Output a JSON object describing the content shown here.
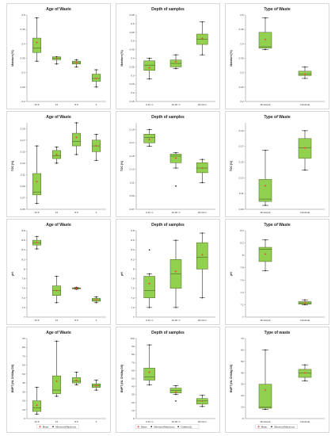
{
  "colors": {
    "box_fill": "#92d050",
    "box_stroke": "#4f6228",
    "mean": "#ff3b3b",
    "whisker": "#000000",
    "frame": "#bfbfbf"
  },
  "chart_data": [
    {
      "type": "box",
      "title": "Age of Waste",
      "ylabel": "Moisture (%)",
      "ylim": [
        0.2,
        0.5
      ],
      "yticks": [
        0.2,
        0.25,
        0.3,
        0.35,
        0.4,
        0.45,
        0.5
      ],
      "categories": [
        "22.5",
        "12",
        "8.5",
        "3"
      ],
      "boxes": [
        {
          "min": 0.34,
          "q1": 0.37,
          "median": 0.385,
          "q3": 0.42,
          "max": 0.49,
          "mean": 0.405
        },
        {
          "min": 0.33,
          "q1": 0.345,
          "median": 0.35,
          "q3": 0.355,
          "max": 0.355,
          "mean": 0.35
        },
        {
          "min": 0.32,
          "q1": 0.33,
          "median": 0.335,
          "q3": 0.34,
          "max": 0.345,
          "mean": 0.335
        },
        {
          "min": 0.25,
          "q1": 0.27,
          "median": 0.28,
          "q3": 0.295,
          "max": 0.31,
          "mean": 0.28
        }
      ],
      "legend": []
    },
    {
      "type": "box",
      "title": "Depth of samples",
      "ylabel": "Moisture (%)",
      "ylim": [
        0.15,
        0.65
      ],
      "yticks": [
        0.15,
        0.2,
        0.25,
        0.3,
        0.35,
        0.4,
        0.45,
        0.5,
        0.55,
        0.6,
        0.65
      ],
      "categories": [
        "0-10 m",
        "10-20 m",
        "20-30 m"
      ],
      "boxes": [
        {
          "min": 0.28,
          "q1": 0.33,
          "median": 0.36,
          "q3": 0.385,
          "max": 0.4,
          "mean": 0.345
        },
        {
          "min": 0.34,
          "q1": 0.35,
          "median": 0.37,
          "q3": 0.39,
          "max": 0.42,
          "mean": 0.38
        },
        {
          "min": 0.42,
          "q1": 0.48,
          "median": 0.51,
          "q3": 0.54,
          "max": 0.61,
          "mean": 0.515
        }
      ],
      "legend": []
    },
    {
      "type": "box",
      "title": "Type of Waste",
      "ylabel": "Moisture (%)",
      "ylim": [
        0.2,
        0.5
      ],
      "yticks": [
        0.2,
        0.25,
        0.3,
        0.35,
        0.4,
        0.45,
        0.5
      ],
      "categories": [
        "Municipal",
        "Industrial"
      ],
      "boxes": [
        {
          "min": 0.38,
          "q1": 0.385,
          "median": 0.39,
          "q3": 0.44,
          "max": 0.49,
          "mean": 0.415
        },
        {
          "min": 0.28,
          "q1": 0.29,
          "median": 0.295,
          "q3": 0.305,
          "max": 0.32,
          "mean": 0.295
        }
      ],
      "legend": []
    },
    {
      "type": "box",
      "title": "Age of Waste",
      "ylabel": "TOC (%)",
      "ylim": [
        0.05,
        0.2
      ],
      "yticks": [
        0.05,
        0.07,
        0.09,
        0.11,
        0.13,
        0.15,
        0.17,
        0.19
      ],
      "categories": [
        "22.5",
        "12",
        "8.5",
        "3"
      ],
      "boxes": [
        {
          "min": 0.06,
          "q1": 0.075,
          "median": 0.08,
          "q3": 0.112,
          "max": 0.16,
          "mean": 0.098
        },
        {
          "min": 0.13,
          "q1": 0.138,
          "median": 0.143,
          "q3": 0.152,
          "max": 0.158,
          "mean": 0.145
        },
        {
          "min": 0.145,
          "q1": 0.16,
          "median": 0.168,
          "q3": 0.182,
          "max": 0.2,
          "mean": 0.175
        },
        {
          "min": 0.135,
          "q1": 0.15,
          "median": 0.16,
          "q3": 0.17,
          "max": 0.18,
          "mean": 0.16
        }
      ],
      "legend": []
    },
    {
      "type": "box",
      "title": "Depth of samples",
      "ylabel": "TOC (%)",
      "ylim": [
        0.07,
        0.2
      ],
      "yticks": [
        0.07,
        0.09,
        0.11,
        0.13,
        0.15,
        0.17,
        0.19
      ],
      "categories": [
        "0-10 m",
        "10-20 m",
        "20-30 m"
      ],
      "boxes": [
        {
          "min": 0.165,
          "q1": 0.17,
          "median": 0.178,
          "q3": 0.183,
          "max": 0.19,
          "mean": 0.175
        },
        {
          "min": 0.132,
          "q1": 0.14,
          "median": 0.15,
          "q3": 0.153,
          "max": 0.155,
          "mean": 0.147,
          "outliers": [
            0.105
          ]
        },
        {
          "min": 0.11,
          "q1": 0.125,
          "median": 0.132,
          "q3": 0.14,
          "max": 0.145,
          "mean": 0.132
        }
      ],
      "legend": []
    },
    {
      "type": "box",
      "title": "Type of Waste",
      "ylabel": "TOC (%)",
      "ylim": [
        0.09,
        0.2
      ],
      "yticks": [
        0.09,
        0.11,
        0.13,
        0.15,
        0.17,
        0.19
      ],
      "categories": [
        "Municipal",
        "Industrial"
      ],
      "boxes": [
        {
          "min": 0.095,
          "q1": 0.1,
          "median": 0.103,
          "q3": 0.128,
          "max": 0.165,
          "mean": 0.12
        },
        {
          "min": 0.14,
          "q1": 0.155,
          "median": 0.168,
          "q3": 0.18,
          "max": 0.19,
          "mean": 0.168
        }
      ],
      "legend": []
    },
    {
      "type": "box",
      "title": "Age of Waste",
      "ylabel": "pH",
      "ylim": [
        7,
        8.8
      ],
      "yticks": [
        7,
        7.2,
        7.4,
        7.6,
        7.8,
        8,
        8.2,
        8.4,
        8.6,
        8.8
      ],
      "categories": [
        "22.5",
        "12",
        "8.5",
        "3"
      ],
      "boxes": [
        {
          "min": 8.42,
          "q1": 8.5,
          "median": 8.55,
          "q3": 8.6,
          "max": 8.68,
          "mean": 8.55
        },
        {
          "min": 7.3,
          "q1": 7.45,
          "median": 7.55,
          "q3": 7.65,
          "max": 7.85,
          "mean": 7.55
        },
        {
          "min": 7.58,
          "q1": 7.59,
          "median": 7.6,
          "q3": 7.61,
          "max": 7.62,
          "mean": 7.6
        },
        {
          "min": 7.3,
          "q1": 7.33,
          "median": 7.36,
          "q3": 7.39,
          "max": 7.42,
          "mean": 7.36
        }
      ],
      "legend": []
    },
    {
      "type": "box",
      "title": "Depth of samples",
      "ylabel": "pH",
      "ylim": [
        7,
        8.8
      ],
      "yticks": [
        7,
        7.2,
        7.4,
        7.6,
        7.8,
        8,
        8.2,
        8.4,
        8.6,
        8.8
      ],
      "categories": [
        "0-10 m",
        "10-20 m",
        "20-30 m"
      ],
      "boxes": [
        {
          "min": 7.2,
          "q1": 7.4,
          "median": 7.55,
          "q3": 7.85,
          "max": 7.9,
          "mean": 7.7,
          "outliers": [
            8.4
          ]
        },
        {
          "min": 7.2,
          "q1": 7.6,
          "median": 7.9,
          "q3": 8.2,
          "max": 8.6,
          "mean": 7.95
        },
        {
          "min": 7.4,
          "q1": 8.0,
          "median": 8.25,
          "q3": 8.55,
          "max": 8.75,
          "mean": 8.3
        }
      ],
      "legend": []
    },
    {
      "type": "box",
      "title": "Type of Waste",
      "ylabel": "pH",
      "ylim": [
        7,
        8.4
      ],
      "yticks": [
        7,
        7.2,
        7.4,
        7.6,
        7.8,
        8,
        8.2,
        8.4
      ],
      "categories": [
        "Municipal",
        "Industrial"
      ],
      "boxes": [
        {
          "min": 7.75,
          "q1": 7.9,
          "median": 8.1,
          "q3": 8.13,
          "max": 8.25,
          "mean": 8.02
        },
        {
          "min": 7.2,
          "q1": 7.21,
          "median": 7.23,
          "q3": 7.25,
          "max": 7.28,
          "mean": 7.23
        }
      ],
      "legend": []
    },
    {
      "type": "box",
      "title": "Age of Waste",
      "ylabel": "BMPT (NL CH4/kg DS)",
      "ylim": [
        0,
        90
      ],
      "yticks": [
        0,
        10,
        20,
        30,
        40,
        50,
        60,
        70,
        80,
        90
      ],
      "categories": [
        "22.5",
        "12",
        "8.5",
        "3"
      ],
      "boxes": [
        {
          "min": 5,
          "q1": 8,
          "median": 12,
          "q3": 20,
          "max": 35,
          "mean": 15
        },
        {
          "min": 25,
          "q1": 28,
          "median": 32,
          "q3": 48,
          "max": 87,
          "mean": 42
        },
        {
          "min": 38,
          "q1": 40,
          "median": 42,
          "q3": 46,
          "max": 52,
          "mean": 43
        },
        {
          "min": 32,
          "q1": 35,
          "median": 37,
          "q3": 39,
          "max": 43,
          "mean": 37
        }
      ],
      "legend": [
        "Mean",
        "Minimum/Maximum"
      ]
    },
    {
      "type": "box",
      "title": "Depth of samples",
      "ylabel": "BMPT (NL CH4/kg DS)",
      "ylim": [
        0,
        100
      ],
      "yticks": [
        0,
        10,
        20,
        30,
        40,
        50,
        60,
        70,
        80,
        90,
        100
      ],
      "categories": [
        "0-10 m",
        "10-20 m",
        "20-30 m"
      ],
      "boxes": [
        {
          "min": 42,
          "q1": 48,
          "median": 52,
          "q3": 63,
          "max": 92,
          "mean": 58
        },
        {
          "min": 30,
          "q1": 32,
          "median": 35,
          "q3": 38,
          "max": 41,
          "mean": 33,
          "outliers": [
            22
          ]
        },
        {
          "min": 15,
          "q1": 18,
          "median": 22,
          "q3": 25,
          "max": 29,
          "mean": 22
        }
      ],
      "legend": [
        "Mean",
        "Minimum/Maximum",
        "Outliers(1)"
      ]
    },
    {
      "type": "box",
      "title": "Type of waste",
      "ylabel": "BMPT (NL CH4/kg DS)",
      "ylim": [
        0,
        70
      ],
      "yticks": [
        0,
        10,
        20,
        30,
        40,
        50,
        60,
        70
      ],
      "categories": [
        "Municipal",
        "Industrial"
      ],
      "boxes": [
        {
          "min": 8,
          "q1": 9,
          "median": 10,
          "q3": 30,
          "max": 60,
          "mean": 25
        },
        {
          "min": 33,
          "q1": 36,
          "median": 40,
          "q3": 43,
          "max": 47,
          "mean": 40
        }
      ],
      "legend": [
        "Mean",
        "Minimum/Maximum"
      ]
    }
  ]
}
